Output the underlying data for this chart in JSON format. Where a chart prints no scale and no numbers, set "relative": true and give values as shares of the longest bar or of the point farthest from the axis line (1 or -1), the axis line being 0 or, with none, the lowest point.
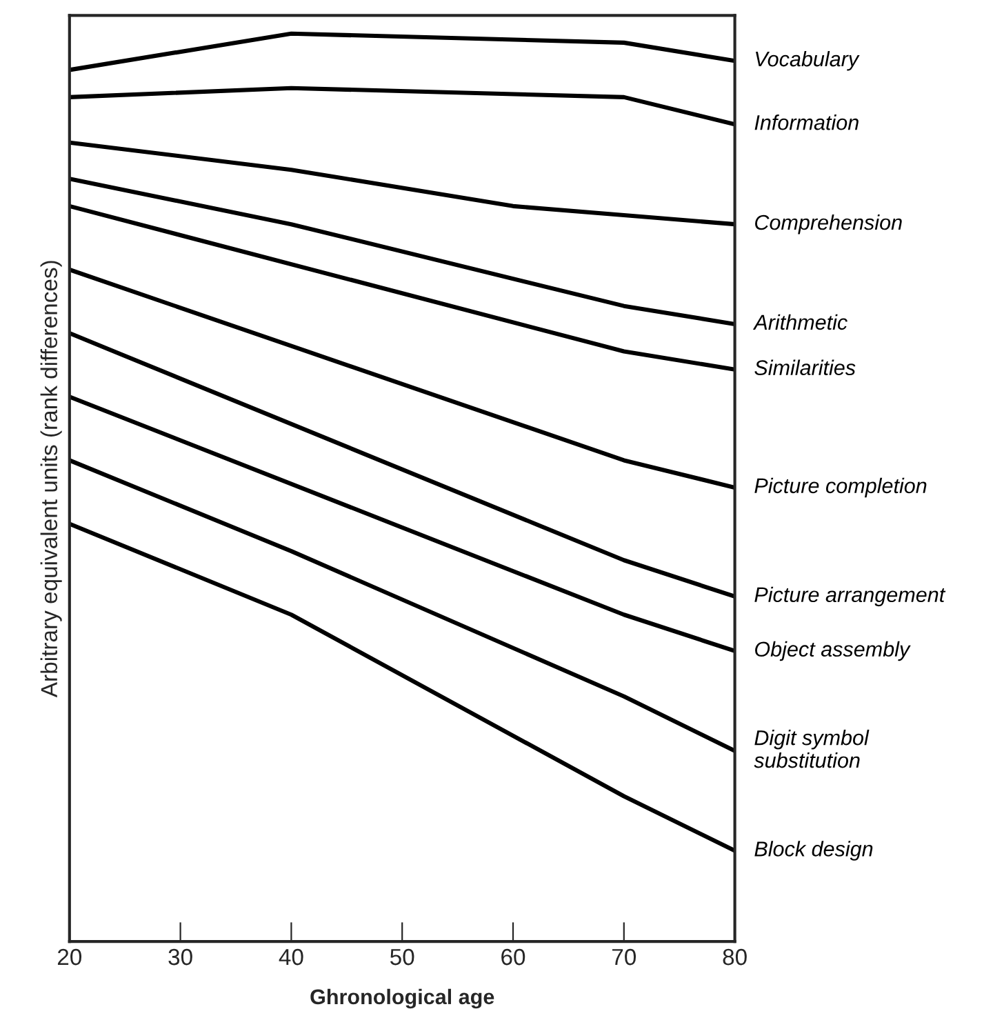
{
  "chart_data": {
    "type": "line",
    "xlabel": "Ghronological age",
    "ylabel": "Arbitrary equivalent units (rank differences)",
    "relative": true,
    "xlim": [
      20,
      80
    ],
    "xticks": [
      20,
      30,
      40,
      50,
      60,
      70,
      80
    ],
    "tick_labels": "x",
    "grid": false,
    "legend": false,
    "marker": "none",
    "line_style": "solid",
    "series": [
      {
        "name": "Vocabulary",
        "color": "#000000",
        "x": [
          20,
          40,
          70,
          80
        ],
        "values": [
          0.96,
          1.0,
          0.99,
          0.97
        ]
      },
      {
        "name": "Information",
        "color": "#000000",
        "x": [
          20,
          40,
          70,
          80
        ],
        "values": [
          0.93,
          0.94,
          0.93,
          0.9
        ]
      },
      {
        "name": "Comprehension",
        "color": "#000000",
        "x": [
          20,
          40,
          60,
          70,
          80
        ],
        "values": [
          0.88,
          0.85,
          0.81,
          0.8,
          0.79
        ]
      },
      {
        "name": "Arithmetic",
        "color": "#000000",
        "x": [
          20,
          40,
          70,
          80
        ],
        "values": [
          0.84,
          0.79,
          0.7,
          0.68
        ]
      },
      {
        "name": "Similarities",
        "color": "#000000",
        "x": [
          20,
          70,
          80
        ],
        "values": [
          0.81,
          0.65,
          0.63
        ]
      },
      {
        "name": "Picture completion",
        "color": "#000000",
        "x": [
          20,
          70,
          80
        ],
        "values": [
          0.74,
          0.53,
          0.5
        ]
      },
      {
        "name": "Picture arrangement",
        "color": "#000000",
        "x": [
          20,
          70,
          80
        ],
        "values": [
          0.67,
          0.42,
          0.38
        ]
      },
      {
        "name": "Object assembly",
        "color": "#000000",
        "x": [
          20,
          70,
          80
        ],
        "values": [
          0.6,
          0.36,
          0.32
        ]
      },
      {
        "name": "Digit symbol\nsubstitution",
        "color": "#000000",
        "x": [
          20,
          40,
          70,
          80
        ],
        "values": [
          0.53,
          0.43,
          0.27,
          0.21
        ]
      },
      {
        "name": "Block design",
        "color": "#000000",
        "x": [
          20,
          40,
          70,
          80
        ],
        "values": [
          0.46,
          0.36,
          0.16,
          0.1
        ]
      }
    ]
  }
}
